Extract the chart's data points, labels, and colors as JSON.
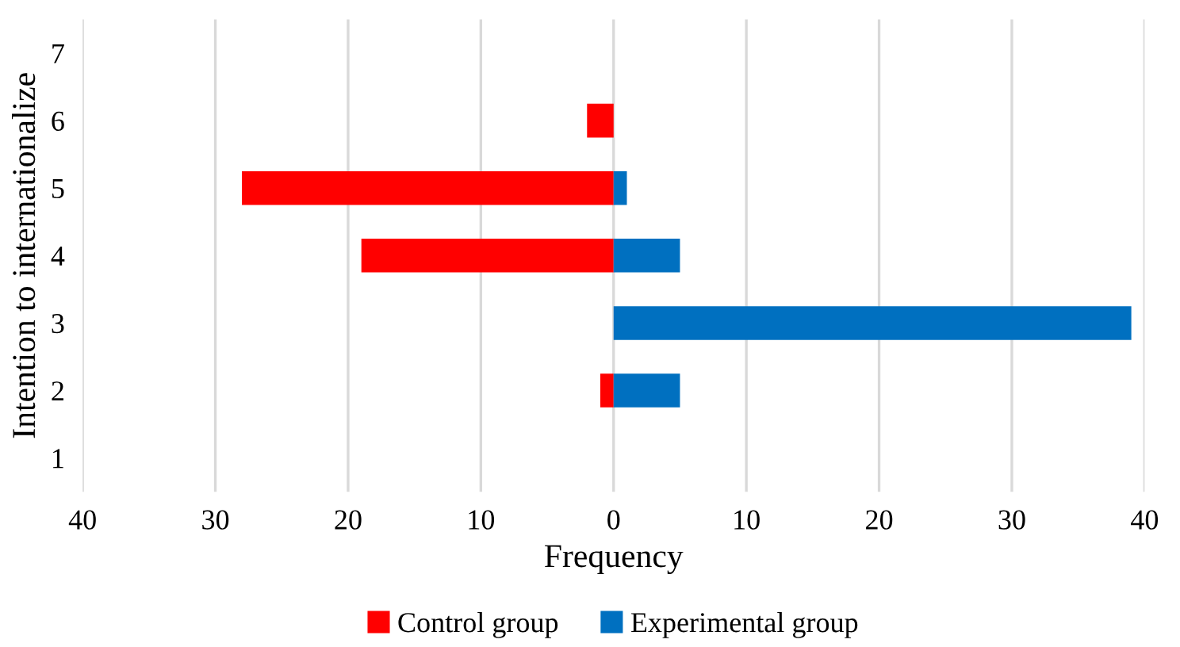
{
  "chart_data": {
    "type": "bar",
    "orientation": "horizontal",
    "ylabel": "Intention to internationalize",
    "xlabel": "Frequency",
    "categories": [
      "7",
      "6",
      "5",
      "4",
      "3",
      "2",
      "1"
    ],
    "series": [
      {
        "name": "Control group",
        "color": "#ff0000",
        "values": [
          null,
          -2,
          -28,
          -19,
          null,
          -1,
          null
        ]
      },
      {
        "name": "Experimental group",
        "color": "#0070c0",
        "values": [
          null,
          null,
          1,
          5,
          39,
          5,
          null
        ]
      }
    ],
    "xlim": [
      -40,
      40
    ],
    "xticks": [
      {
        "value": -40,
        "label": "40"
      },
      {
        "value": -30,
        "label": "30"
      },
      {
        "value": -20,
        "label": "20"
      },
      {
        "value": -10,
        "label": "10"
      },
      0,
      10,
      20,
      30,
      40
    ],
    "grid": "x",
    "legend": "bottom"
  }
}
